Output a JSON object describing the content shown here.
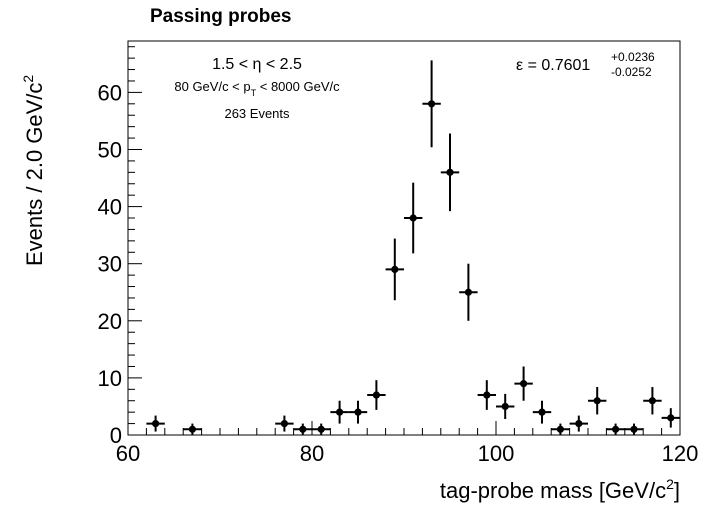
{
  "chart_data": {
    "type": "scatter",
    "title": "Passing probes",
    "xlabel": "tag-probe mass [GeV/c²]",
    "ylabel": "Events / 2.0 GeV/c²",
    "xlim": [
      60,
      120
    ],
    "ylim": [
      0,
      69
    ],
    "grid": false,
    "x_ticks": [
      60,
      80,
      100,
      120
    ],
    "y_ticks": [
      0,
      10,
      20,
      30,
      40,
      50,
      60
    ],
    "annotations": {
      "eta_range": "1.5 < η < 2.5",
      "pt_range": "80 GeV/c < pT < 8000 GeV/c",
      "events": "263 Events",
      "efficiency": "ε = 0.7601",
      "eff_err_up": "+0.0236",
      "eff_err_down": "-0.0252"
    },
    "x_bin_half_width": 1.0,
    "points": [
      {
        "x": 63,
        "y": 2,
        "err_low": 1.4,
        "err_high": 1.4
      },
      {
        "x": 67,
        "y": 1,
        "err_low": 1.0,
        "err_high": 1.0
      },
      {
        "x": 77,
        "y": 2,
        "err_low": 1.4,
        "err_high": 1.4
      },
      {
        "x": 79,
        "y": 1,
        "err_low": 1.0,
        "err_high": 1.0
      },
      {
        "x": 81,
        "y": 1,
        "err_low": 1.0,
        "err_high": 1.0
      },
      {
        "x": 83,
        "y": 4,
        "err_low": 2.0,
        "err_high": 2.0
      },
      {
        "x": 85,
        "y": 4,
        "err_low": 2.0,
        "err_high": 2.0
      },
      {
        "x": 87,
        "y": 7,
        "err_low": 2.6,
        "err_high": 2.6
      },
      {
        "x": 89,
        "y": 29,
        "err_low": 5.4,
        "err_high": 5.4
      },
      {
        "x": 91,
        "y": 38,
        "err_low": 6.2,
        "err_high": 6.2
      },
      {
        "x": 93,
        "y": 58,
        "err_low": 7.6,
        "err_high": 7.6
      },
      {
        "x": 95,
        "y": 46,
        "err_low": 6.8,
        "err_high": 6.8
      },
      {
        "x": 97,
        "y": 25,
        "err_low": 5.0,
        "err_high": 5.0
      },
      {
        "x": 99,
        "y": 7,
        "err_low": 2.6,
        "err_high": 2.6
      },
      {
        "x": 101,
        "y": 5,
        "err_low": 2.2,
        "err_high": 2.2
      },
      {
        "x": 103,
        "y": 9,
        "err_low": 3.0,
        "err_high": 3.0
      },
      {
        "x": 105,
        "y": 4,
        "err_low": 2.0,
        "err_high": 2.0
      },
      {
        "x": 107,
        "y": 1,
        "err_low": 1.0,
        "err_high": 1.0
      },
      {
        "x": 109,
        "y": 2,
        "err_low": 1.4,
        "err_high": 1.4
      },
      {
        "x": 111,
        "y": 6,
        "err_low": 2.4,
        "err_high": 2.4
      },
      {
        "x": 113,
        "y": 1,
        "err_low": 1.0,
        "err_high": 1.0
      },
      {
        "x": 115,
        "y": 1,
        "err_low": 1.0,
        "err_high": 1.0
      },
      {
        "x": 117,
        "y": 6,
        "err_low": 2.4,
        "err_high": 2.4
      },
      {
        "x": 119,
        "y": 3,
        "err_low": 1.7,
        "err_high": 1.7
      }
    ]
  }
}
